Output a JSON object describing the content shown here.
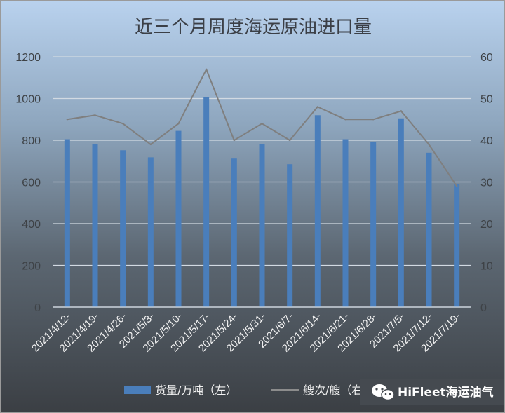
{
  "chart_data": {
    "type": "bar",
    "title": "近三个月周度海运原油进口量",
    "categories": [
      "2021/4/12-",
      "2021/4/19-",
      "2021/4/26-",
      "2021/5/3-",
      "2021/5/10-",
      "2021/5/17-",
      "2021/5/24-",
      "2021/5/31-",
      "2021/6/7-",
      "2021/6/14-",
      "2021/6/21-",
      "2021/6/28-",
      "2021/7/5-",
      "2021/7/12-",
      "2021/7/19-"
    ],
    "series": [
      {
        "name": "货量/万吨（左）",
        "type": "bar",
        "axis": "left",
        "color": "#4a7ebb",
        "values": [
          805,
          783,
          752,
          718,
          845,
          1008,
          712,
          780,
          685,
          920,
          805,
          790,
          905,
          740,
          590
        ]
      },
      {
        "name": "艘次/艘（右）",
        "type": "line",
        "axis": "right",
        "color": "#7f7f7f",
        "values": [
          45,
          46,
          44,
          39,
          44,
          57,
          40,
          44,
          40,
          48,
          45,
          45,
          47,
          39,
          29
        ]
      }
    ],
    "ylim_left": [
      0,
      1200
    ],
    "ylim_right": [
      0,
      60
    ],
    "yticks_left": [
      "0",
      "200",
      "400",
      "600",
      "800",
      "1000",
      "1200"
    ],
    "yticks_right": [
      "0",
      "10",
      "20",
      "30",
      "40",
      "50",
      "60"
    ],
    "grid": true,
    "legend_position": "bottom"
  },
  "watermark": {
    "icon": "wechat-icon",
    "text": "HiFleet海运油气"
  }
}
